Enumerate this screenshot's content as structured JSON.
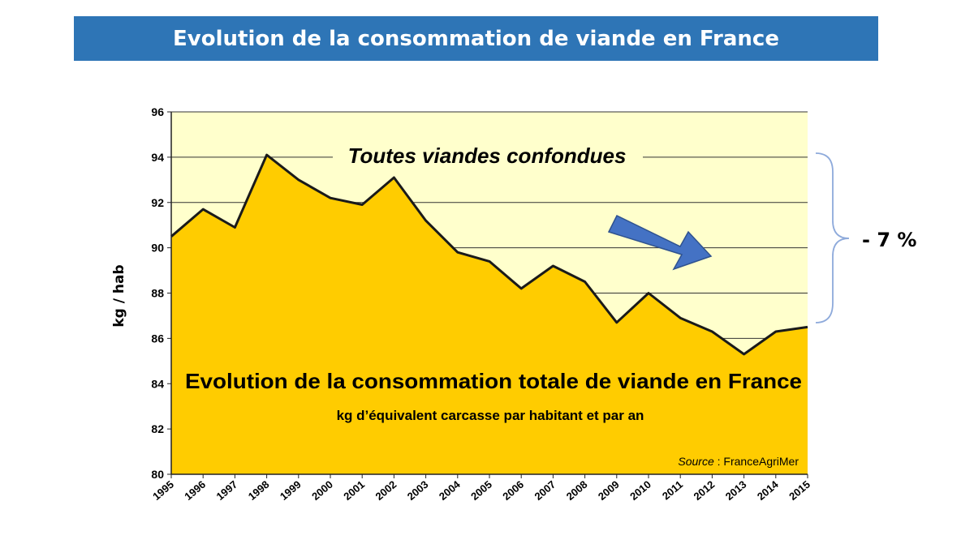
{
  "slide": {
    "title": "Evolution de la consommation de viande en France",
    "change_label": "- 7 %"
  },
  "colors": {
    "title_bg": "#2e75b6",
    "plot_bg": "#ffffcc",
    "area_fill": "#ffcc00",
    "line": "#1a1a1a",
    "arrow": "#4472c4",
    "arrow_border": "#2f528f",
    "brace": "#8eaadb"
  },
  "chart_data": {
    "type": "area",
    "ylabel": "kg / hab",
    "inner_title": "Toutes viandes confondues",
    "main_caption": "Evolution de la consommation totale de viande en France",
    "sub_caption": "kg d’équivalent carcasse par habitant et par an",
    "source_label": "Source",
    "source_value": " : FranceAgriMer",
    "ylim": [
      80,
      96
    ],
    "yticks": [
      80,
      82,
      84,
      86,
      88,
      90,
      92,
      94,
      96
    ],
    "grid": true,
    "x": [
      "1995",
      "1996",
      "1997",
      "1998",
      "1999",
      "2000",
      "2001",
      "2002",
      "2003",
      "2004",
      "2005",
      "2006",
      "2007",
      "2008",
      "2009",
      "2010",
      "2011",
      "2012",
      "2013",
      "2014",
      "2015"
    ],
    "values": [
      90.5,
      91.7,
      90.9,
      94.1,
      93.0,
      92.2,
      91.9,
      93.1,
      91.2,
      89.8,
      89.4,
      88.2,
      89.2,
      88.5,
      86.7,
      88.0,
      86.9,
      86.3,
      85.3,
      86.3,
      86.5
    ],
    "annotation": "- 7 %"
  }
}
